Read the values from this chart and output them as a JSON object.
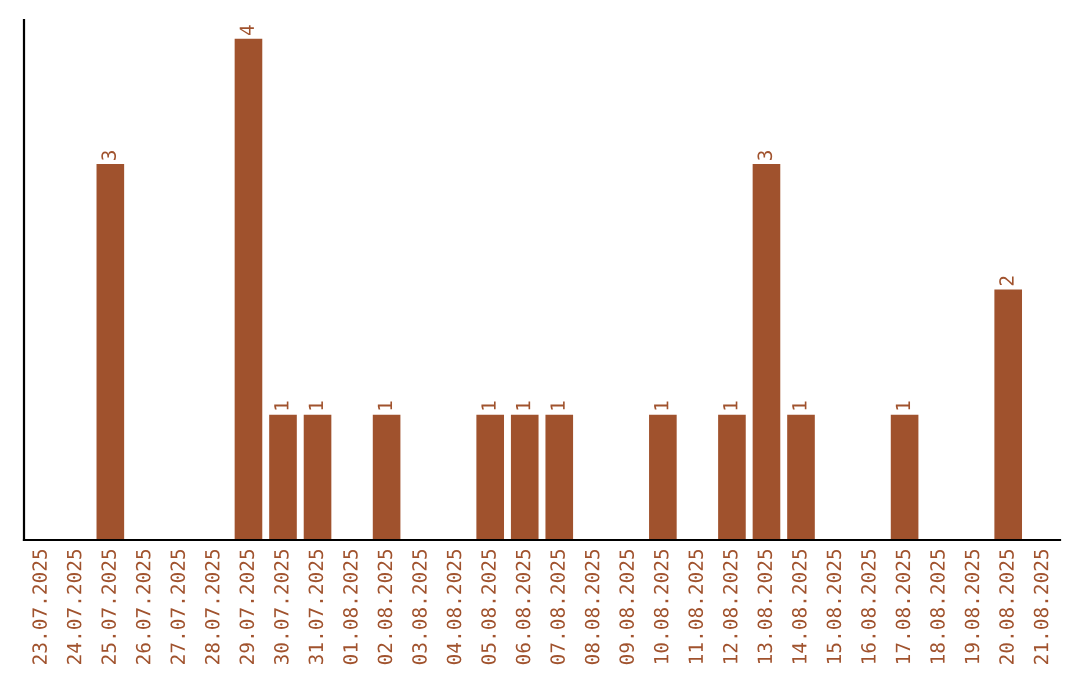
{
  "chart_data": {
    "type": "bar",
    "categories": [
      "23.07.2025",
      "24.07.2025",
      "25.07.2025",
      "26.07.2025",
      "27.07.2025",
      "28.07.2025",
      "29.07.2025",
      "30.07.2025",
      "31.07.2025",
      "01.08.2025",
      "02.08.2025",
      "03.08.2025",
      "04.08.2025",
      "05.08.2025",
      "06.08.2025",
      "07.08.2025",
      "08.08.2025",
      "09.08.2025",
      "10.08.2025",
      "11.08.2025",
      "12.08.2025",
      "13.08.2025",
      "14.08.2025",
      "15.08.2025",
      "16.08.2025",
      "17.08.2025",
      "18.08.2025",
      "19.08.2025",
      "20.08.2025",
      "21.08.2025"
    ],
    "values": [
      0,
      0,
      3,
      0,
      0,
      0,
      4,
      1,
      1,
      0,
      1,
      0,
      0,
      1,
      1,
      1,
      0,
      0,
      1,
      0,
      1,
      3,
      1,
      0,
      0,
      1,
      0,
      0,
      2,
      0
    ],
    "value_labels": [
      null,
      null,
      "3",
      null,
      null,
      null,
      "4",
      "1",
      "1",
      null,
      "1",
      null,
      null,
      "1",
      "1",
      "1",
      null,
      null,
      "1",
      null,
      "1",
      "3",
      "1",
      null,
      null,
      "1",
      null,
      null,
      "2",
      null
    ],
    "color": "#a0522d",
    "ylim": [
      0,
      4.15
    ],
    "tick_labels": "x",
    "grid": false
  }
}
